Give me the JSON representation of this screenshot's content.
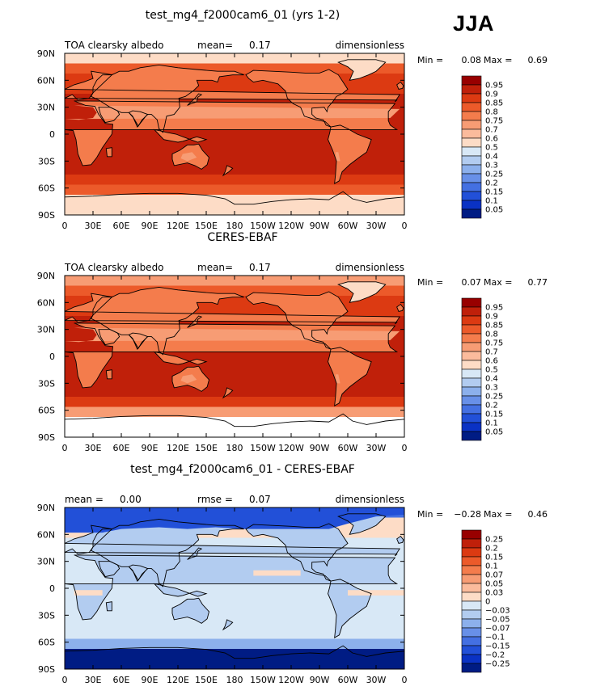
{
  "season": "JJA",
  "chart_data": [
    {
      "type": "heatmap",
      "title": "test_mg4_f2000cam6_01 (yrs 1-2)",
      "left_label": "TOA clearsky albedo",
      "stat1_label": "mean=",
      "stat1_value": "0.17",
      "units": "dimensionless",
      "min_label": "Min =",
      "min_value": "0.08",
      "max_label": "Max =",
      "max_value": "0.69",
      "x_ticks": [
        "0",
        "30E",
        "60E",
        "90E",
        "120E",
        "150E",
        "180",
        "150W",
        "120W",
        "90W",
        "60W",
        "30W",
        "0"
      ],
      "y_ticks": [
        "90N",
        "60N",
        "30N",
        "0",
        "30S",
        "60S",
        "90S"
      ],
      "colorbar_labels": [
        "0.95",
        "0.9",
        "0.85",
        "0.8",
        "0.75",
        "0.7",
        "0.6",
        "0.5",
        "0.4",
        "0.3",
        "0.25",
        "0.2",
        "0.15",
        "0.1",
        "0.05"
      ],
      "colorbar_colors": [
        "#980000",
        "#c0200a",
        "#dc3a12",
        "#ec5a2a",
        "#f47c4c",
        "#f79c74",
        "#fbbb9c",
        "#fddcc6",
        "#d8e8f6",
        "#b2ccf0",
        "#8cb0ec",
        "#6890e8",
        "#4470e2",
        "#2250d8",
        "#0a32c4",
        "#001c84"
      ],
      "lat_band_levels": [
        7,
        3,
        2,
        2,
        1,
        1,
        1,
        1,
        1,
        1,
        1,
        1,
        2,
        3,
        7,
        7
      ],
      "regions": [
        {
          "name": "land",
          "level": 4
        },
        {
          "name": "desert",
          "level": 5
        },
        {
          "name": "greenland",
          "level": 7
        }
      ]
    },
    {
      "type": "heatmap",
      "title": "CERES-EBAF",
      "left_label": "TOA clearsky albedo",
      "stat1_label": "mean=",
      "stat1_value": "0.17",
      "units": "dimensionless",
      "min_label": "Min =",
      "min_value": "0.07",
      "max_label": "Max =",
      "max_value": "0.77",
      "x_ticks": [
        "0",
        "30E",
        "60E",
        "90E",
        "120E",
        "150E",
        "180",
        "150W",
        "120W",
        "90W",
        "60W",
        "30W",
        "0"
      ],
      "y_ticks": [
        "90N",
        "60N",
        "30N",
        "0",
        "30S",
        "60S",
        "90S"
      ],
      "colorbar_labels": [
        "0.95",
        "0.9",
        "0.85",
        "0.8",
        "0.75",
        "0.7",
        "0.6",
        "0.5",
        "0.4",
        "0.3",
        "0.25",
        "0.2",
        "0.15",
        "0.1",
        "0.05"
      ],
      "colorbar_colors": [
        "#980000",
        "#c0200a",
        "#dc3a12",
        "#ec5a2a",
        "#f47c4c",
        "#f79c74",
        "#fbbb9c",
        "#fddcc6",
        "#d8e8f6",
        "#b2ccf0",
        "#8cb0ec",
        "#6890e8",
        "#4470e2",
        "#2250d8",
        "#0a32c4",
        "#001c84"
      ],
      "lat_band_levels": [
        5,
        3,
        2,
        2,
        1,
        1,
        1,
        1,
        1,
        1,
        1,
        1,
        2,
        5,
        -1,
        -1
      ],
      "regions": [
        {
          "name": "land",
          "level": 4
        },
        {
          "name": "desert",
          "level": 5
        },
        {
          "name": "greenland",
          "level": 7
        }
      ]
    },
    {
      "type": "heatmap",
      "title": "test_mg4_f2000cam6_01 - CERES-EBAF",
      "left_label": "mean =",
      "left_value": "0.00",
      "stat1_label": "rmse =",
      "stat1_value": "0.07",
      "units": "dimensionless",
      "min_label": "Min =",
      "min_value": "−0.28",
      "max_label": "Max =",
      "max_value": "0.46",
      "x_ticks": [
        "0",
        "30E",
        "60E",
        "90E",
        "120E",
        "150E",
        "180",
        "150W",
        "120W",
        "90W",
        "60W",
        "30W",
        "0"
      ],
      "y_ticks": [
        "90N",
        "60N",
        "30N",
        "0",
        "30S",
        "60S",
        "90S"
      ],
      "colorbar_labels": [
        "0.25",
        "0.2",
        "0.15",
        "0.1",
        "0.07",
        "0.05",
        "0.03",
        "0",
        "−0.03",
        "−0.05",
        "−0.07",
        "−0.1",
        "−0.15",
        "−0.2",
        "−0.25"
      ],
      "colorbar_colors": [
        "#980000",
        "#c0200a",
        "#dc3a12",
        "#ec5a2a",
        "#f47c4c",
        "#f79c74",
        "#fbbb9c",
        "#fddcc6",
        "#d8e8f6",
        "#b2ccf0",
        "#8cb0ec",
        "#6890e8",
        "#4470e2",
        "#2250d8",
        "#0a32c4",
        "#001c84"
      ],
      "lat_band_levels": [
        12,
        7,
        7,
        8,
        8,
        8,
        8,
        8,
        8,
        8,
        8,
        8,
        8,
        10,
        15,
        15
      ],
      "regions": [
        {
          "name": "arctic-land",
          "level": 13
        },
        {
          "name": "land",
          "level": 9
        },
        {
          "name": "tropical-band",
          "level": 7
        }
      ]
    }
  ]
}
